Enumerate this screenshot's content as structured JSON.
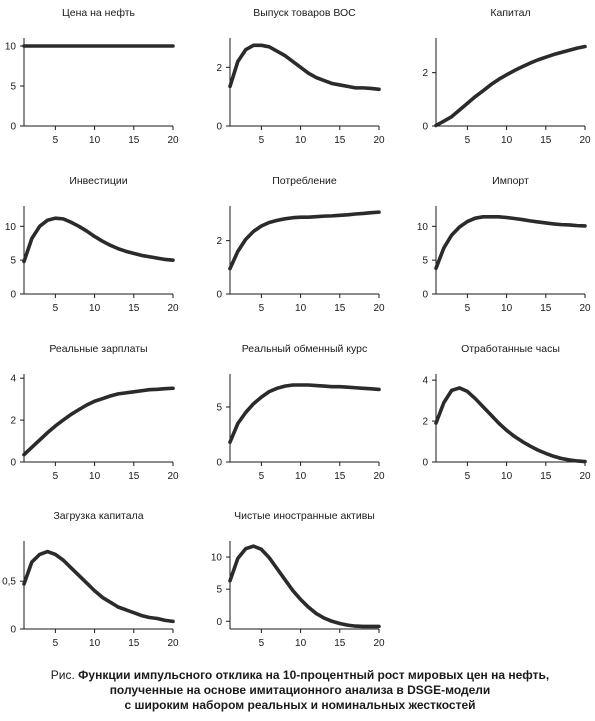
{
  "caption": {
    "prefix": "Рис.",
    "lines": [
      "Функции импульсного отклика на 10-процентный рост мировых цен на нефть,",
      "полученные на основе имитационного анализа в DSGE-модели",
      "с широким набором реальных и номинальных жесткостей"
    ]
  },
  "chart_data": [
    {
      "type": "line",
      "title": "Цена на нефть",
      "xlim": [
        1,
        20
      ],
      "ylim": [
        0,
        11
      ],
      "xticks": [
        5,
        10,
        15,
        20
      ],
      "yticks": [
        0,
        5,
        10
      ],
      "ytick_labels": [
        "0",
        "5",
        "10"
      ],
      "x": [
        1,
        2,
        3,
        4,
        5,
        6,
        7,
        8,
        9,
        10,
        11,
        12,
        13,
        14,
        15,
        16,
        17,
        18,
        19,
        20
      ],
      "values": [
        10,
        10,
        10,
        10,
        10,
        10,
        10,
        10,
        10,
        10,
        10,
        10,
        10,
        10,
        10,
        10,
        10,
        10,
        10,
        10
      ]
    },
    {
      "type": "line",
      "title": "Выпуск товаров ВОС",
      "xlim": [
        1,
        20
      ],
      "ylim": [
        0,
        3
      ],
      "xticks": [
        5,
        10,
        15,
        20
      ],
      "yticks": [
        0,
        2
      ],
      "ytick_labels": [
        "0",
        "2"
      ],
      "x": [
        1,
        2,
        3,
        4,
        5,
        6,
        7,
        8,
        9,
        10,
        11,
        12,
        13,
        14,
        15,
        16,
        17,
        18,
        19,
        20
      ],
      "values": [
        1.35,
        2.2,
        2.6,
        2.75,
        2.75,
        2.7,
        2.55,
        2.4,
        2.2,
        2.0,
        1.8,
        1.65,
        1.55,
        1.45,
        1.4,
        1.35,
        1.3,
        1.3,
        1.28,
        1.25
      ]
    },
    {
      "type": "line",
      "title": "Капитал",
      "xlim": [
        1,
        20
      ],
      "ylim": [
        0,
        3.3
      ],
      "xticks": [
        5,
        10,
        15,
        20
      ],
      "yticks": [
        0,
        2
      ],
      "ytick_labels": [
        "0",
        "2"
      ],
      "x": [
        1,
        2,
        3,
        4,
        5,
        6,
        7,
        8,
        9,
        10,
        11,
        12,
        13,
        14,
        15,
        16,
        17,
        18,
        19,
        20
      ],
      "values": [
        0.02,
        0.18,
        0.35,
        0.6,
        0.85,
        1.1,
        1.32,
        1.55,
        1.75,
        1.92,
        2.08,
        2.22,
        2.36,
        2.48,
        2.58,
        2.68,
        2.76,
        2.84,
        2.92,
        2.98
      ]
    },
    {
      "type": "line",
      "title": "Инвестиции",
      "xlim": [
        1,
        20
      ],
      "ylim": [
        0,
        13
      ],
      "xticks": [
        5,
        10,
        15,
        20
      ],
      "yticks": [
        0,
        5,
        10
      ],
      "ytick_labels": [
        "0",
        "5",
        "10"
      ],
      "x": [
        1,
        2,
        3,
        4,
        5,
        6,
        7,
        8,
        9,
        10,
        11,
        12,
        13,
        14,
        15,
        16,
        17,
        18,
        19,
        20
      ],
      "values": [
        4.8,
        8.2,
        10.0,
        10.9,
        11.2,
        11.1,
        10.6,
        10.0,
        9.3,
        8.5,
        7.8,
        7.2,
        6.7,
        6.3,
        6.0,
        5.7,
        5.5,
        5.3,
        5.1,
        5.0
      ]
    },
    {
      "type": "line",
      "title": "Потребление",
      "xlim": [
        1,
        20
      ],
      "ylim": [
        0,
        3.3
      ],
      "xticks": [
        5,
        10,
        15,
        20
      ],
      "yticks": [
        0,
        2
      ],
      "ytick_labels": [
        "0",
        "2"
      ],
      "x": [
        1,
        2,
        3,
        4,
        5,
        6,
        7,
        8,
        9,
        10,
        11,
        12,
        13,
        14,
        15,
        16,
        17,
        18,
        19,
        20
      ],
      "values": [
        0.95,
        1.6,
        2.05,
        2.35,
        2.55,
        2.68,
        2.76,
        2.82,
        2.86,
        2.88,
        2.88,
        2.9,
        2.92,
        2.93,
        2.95,
        2.97,
        3.0,
        3.02,
        3.05,
        3.07
      ]
    },
    {
      "type": "line",
      "title": "Импорт",
      "xlim": [
        1,
        20
      ],
      "ylim": [
        0,
        13
      ],
      "xticks": [
        5,
        10,
        15,
        20
      ],
      "yticks": [
        0,
        5,
        10
      ],
      "ytick_labels": [
        "0",
        "5",
        "10"
      ],
      "x": [
        1,
        2,
        3,
        4,
        5,
        6,
        7,
        8,
        9,
        10,
        11,
        12,
        13,
        14,
        15,
        16,
        17,
        18,
        19,
        20
      ],
      "values": [
        3.8,
        6.8,
        8.7,
        9.9,
        10.7,
        11.2,
        11.4,
        11.4,
        11.4,
        11.3,
        11.15,
        11.0,
        10.8,
        10.65,
        10.5,
        10.35,
        10.25,
        10.2,
        10.1,
        10.05
      ]
    },
    {
      "type": "line",
      "title": "Реальные зарплаты",
      "xlim": [
        1,
        20
      ],
      "ylim": [
        0,
        4.2
      ],
      "xticks": [
        5,
        10,
        15,
        20
      ],
      "yticks": [
        0,
        2,
        4
      ],
      "ytick_labels": [
        "0",
        "2",
        "4"
      ],
      "x": [
        1,
        2,
        3,
        4,
        5,
        6,
        7,
        8,
        9,
        10,
        11,
        12,
        13,
        14,
        15,
        16,
        17,
        18,
        19,
        20
      ],
      "values": [
        0.35,
        0.7,
        1.05,
        1.4,
        1.72,
        2.0,
        2.27,
        2.5,
        2.72,
        2.9,
        3.02,
        3.15,
        3.25,
        3.3,
        3.35,
        3.4,
        3.45,
        3.47,
        3.5,
        3.52
      ]
    },
    {
      "type": "line",
      "title": "Реальный обменный курс",
      "xlim": [
        1,
        20
      ],
      "ylim": [
        0,
        8
      ],
      "xticks": [
        5,
        10,
        15,
        20
      ],
      "yticks": [
        0,
        5
      ],
      "ytick_labels": [
        "0",
        "5"
      ],
      "x": [
        1,
        2,
        3,
        4,
        5,
        6,
        7,
        8,
        9,
        10,
        11,
        12,
        13,
        14,
        15,
        16,
        17,
        18,
        19,
        20
      ],
      "values": [
        1.8,
        3.5,
        4.5,
        5.3,
        5.9,
        6.4,
        6.7,
        6.9,
        7.0,
        7.0,
        7.0,
        6.95,
        6.9,
        6.85,
        6.85,
        6.8,
        6.75,
        6.7,
        6.65,
        6.6
      ]
    },
    {
      "type": "line",
      "title": "Отработанные часы",
      "xlim": [
        1,
        20
      ],
      "ylim": [
        0,
        4.3
      ],
      "xticks": [
        5,
        10,
        15,
        20
      ],
      "yticks": [
        0,
        2,
        4
      ],
      "ytick_labels": [
        "0",
        "2",
        "4"
      ],
      "x": [
        1,
        2,
        3,
        4,
        5,
        6,
        7,
        8,
        9,
        10,
        11,
        12,
        13,
        14,
        15,
        16,
        17,
        18,
        19,
        20
      ],
      "values": [
        1.9,
        2.9,
        3.5,
        3.62,
        3.45,
        3.1,
        2.7,
        2.3,
        1.9,
        1.55,
        1.25,
        1.0,
        0.78,
        0.58,
        0.42,
        0.28,
        0.17,
        0.1,
        0.05,
        0.02
      ]
    },
    {
      "type": "line",
      "title": "Загрузка капитала",
      "xlim": [
        1,
        20
      ],
      "ylim": [
        0,
        0.92
      ],
      "xticks": [
        5,
        10,
        15,
        20
      ],
      "yticks": [
        0,
        0.5
      ],
      "ytick_labels": [
        "0",
        "0,5"
      ],
      "x": [
        1,
        2,
        3,
        4,
        5,
        6,
        7,
        8,
        9,
        10,
        11,
        12,
        13,
        14,
        15,
        16,
        17,
        18,
        19,
        20
      ],
      "values": [
        0.47,
        0.7,
        0.78,
        0.81,
        0.78,
        0.72,
        0.64,
        0.56,
        0.48,
        0.4,
        0.33,
        0.28,
        0.23,
        0.2,
        0.17,
        0.14,
        0.12,
        0.11,
        0.09,
        0.08
      ]
    },
    {
      "type": "line",
      "title": "Чистые иностранные активы",
      "xlim": [
        1,
        20
      ],
      "ylim": [
        -1.2,
        12.5
      ],
      "xticks": [
        5,
        10,
        15,
        20
      ],
      "yticks": [
        0,
        5,
        10
      ],
      "ytick_labels": [
        "0",
        "5",
        "10"
      ],
      "x": [
        1,
        2,
        3,
        4,
        5,
        6,
        7,
        8,
        9,
        10,
        11,
        12,
        13,
        14,
        15,
        16,
        17,
        18,
        19,
        20
      ],
      "values": [
        6.3,
        9.8,
        11.3,
        11.7,
        11.2,
        9.9,
        8.2,
        6.5,
        4.8,
        3.4,
        2.2,
        1.2,
        0.5,
        0.0,
        -0.35,
        -0.6,
        -0.75,
        -0.8,
        -0.8,
        -0.8
      ]
    }
  ]
}
